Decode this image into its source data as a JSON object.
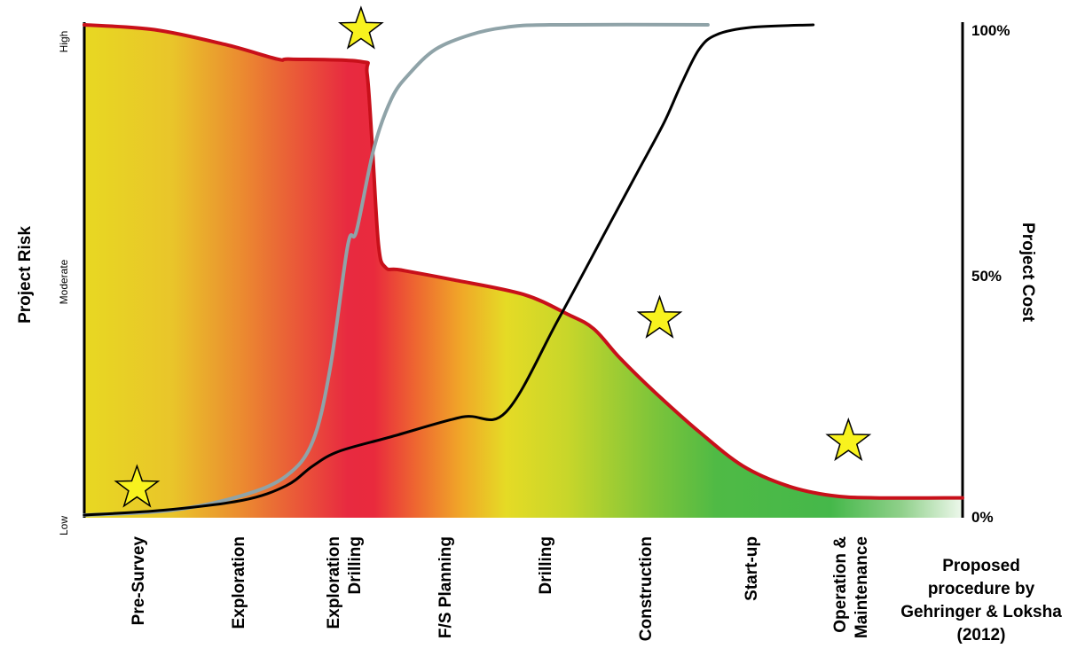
{
  "chart_data": {
    "type": "area",
    "left_axis": {
      "label": "Project Risk",
      "ticks": [
        "High",
        "Moderate",
        "Low"
      ]
    },
    "right_axis": {
      "label": "Project Cost",
      "ticks": [
        "100%",
        "50%",
        "0%"
      ],
      "range": [
        0,
        100
      ]
    },
    "phases": [
      {
        "lines": [
          "Pre-Survey"
        ]
      },
      {
        "lines": [
          "Exploration"
        ]
      },
      {
        "lines": [
          "Exploration",
          "Drilling"
        ]
      },
      {
        "lines": [
          "F/S Planning"
        ]
      },
      {
        "lines": [
          "Drilling"
        ]
      },
      {
        "lines": [
          "Construction"
        ]
      },
      {
        "lines": [
          "Start-up"
        ]
      },
      {
        "lines": [
          "Operation &",
          "Maintenance"
        ]
      }
    ],
    "annotation": [
      "Proposed",
      "procedure by",
      "Gehringer & Loksha",
      "(2012)"
    ],
    "series": [
      {
        "kind": "risk_area",
        "color": "#c8101a",
        "points": [
          [
            0,
            100
          ],
          [
            8,
            99
          ],
          [
            16,
            96
          ],
          [
            22,
            93
          ],
          [
            23.5,
            93
          ],
          [
            31.5,
            92.5
          ],
          [
            32.2,
            90
          ],
          [
            32.8,
            75
          ],
          [
            33.5,
            55
          ],
          [
            34.3,
            50.5
          ],
          [
            36,
            50
          ],
          [
            42,
            48
          ],
          [
            50,
            45
          ],
          [
            55,
            41
          ],
          [
            58,
            38
          ],
          [
            61,
            32
          ],
          [
            65,
            25
          ],
          [
            70,
            17
          ],
          [
            75,
            10
          ],
          [
            80,
            6
          ],
          [
            85,
            4
          ],
          [
            90,
            3.5
          ],
          [
            100,
            3.5
          ]
        ]
      },
      {
        "kind": "cost_curve_a",
        "color": "#8fa3a8",
        "points": [
          [
            0,
            0
          ],
          [
            10,
            1
          ],
          [
            18,
            4
          ],
          [
            23,
            8
          ],
          [
            26,
            15
          ],
          [
            28,
            30
          ],
          [
            30,
            55
          ],
          [
            31,
            58
          ],
          [
            33,
            75
          ],
          [
            35,
            85
          ],
          [
            37,
            90
          ],
          [
            40,
            95
          ],
          [
            44,
            98
          ],
          [
            48,
            99.5
          ],
          [
            53,
            100
          ],
          [
            71,
            100
          ]
        ]
      },
      {
        "kind": "cost_curve_b",
        "color": "#000000",
        "points": [
          [
            0,
            0
          ],
          [
            9,
            1
          ],
          [
            18,
            3
          ],
          [
            23,
            6
          ],
          [
            26,
            10
          ],
          [
            29,
            13
          ],
          [
            35,
            16
          ],
          [
            43,
            20
          ],
          [
            48,
            21
          ],
          [
            54,
            40
          ],
          [
            60,
            60
          ],
          [
            63,
            70
          ],
          [
            66,
            80
          ],
          [
            68,
            88
          ],
          [
            70,
            95
          ],
          [
            72,
            98
          ],
          [
            76,
            99.5
          ],
          [
            83,
            100
          ]
        ]
      }
    ],
    "stars": [
      {
        "x": 6,
        "y": 5.5
      },
      {
        "x": 31.5,
        "y": 99
      },
      {
        "x": 65.5,
        "y": 40
      },
      {
        "x": 87,
        "y": 15
      }
    ],
    "gradient_stops": [
      {
        "x": 0,
        "color": "#e8d822"
      },
      {
        "x": 10,
        "color": "#e9c52a"
      },
      {
        "x": 18,
        "color": "#eb8a30"
      },
      {
        "x": 24,
        "color": "#ea5a38"
      },
      {
        "x": 30,
        "color": "#e82a40"
      },
      {
        "x": 33,
        "color": "#e92a3d"
      },
      {
        "x": 38,
        "color": "#ee6a30"
      },
      {
        "x": 43,
        "color": "#f0a828"
      },
      {
        "x": 48,
        "color": "#e5db25"
      },
      {
        "x": 55,
        "color": "#c8d62a"
      },
      {
        "x": 65,
        "color": "#7cc43a"
      },
      {
        "x": 72,
        "color": "#4fba45"
      },
      {
        "x": 85,
        "color": "#45b84a"
      },
      {
        "x": 93,
        "color": "#8fd08a"
      },
      {
        "x": 100,
        "color": "#eef8ec"
      }
    ]
  }
}
